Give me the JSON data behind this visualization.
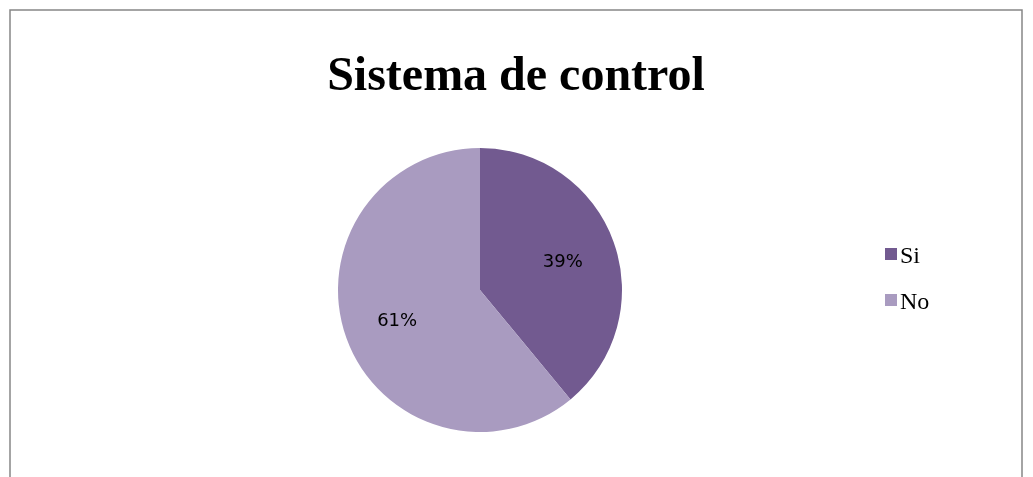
{
  "chart_data": {
    "type": "pie",
    "title": "Sistema de control",
    "categories": [
      "Si",
      "No"
    ],
    "values": [
      39,
      61
    ],
    "value_labels": [
      "39%",
      "61%"
    ],
    "colors": [
      "#725a90",
      "#a99bc0"
    ],
    "legend": "right"
  }
}
